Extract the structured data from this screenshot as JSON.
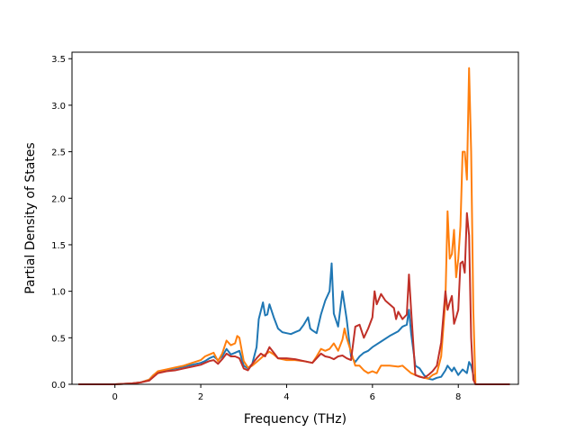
{
  "chart_data": {
    "type": "line",
    "title": "",
    "xlabel": "Frequency (THz)",
    "ylabel": "Partial Density of States",
    "xlim": [
      -1.0,
      9.4
    ],
    "ylim": [
      0.0,
      3.57
    ],
    "xticks": [
      0,
      2,
      4,
      6,
      8
    ],
    "yticks": [
      0.0,
      0.5,
      1.0,
      1.5,
      2.0,
      2.5,
      3.0,
      3.5
    ],
    "ytick_labels": [
      "0.0",
      "0.5",
      "1.0",
      "1.5",
      "2.0",
      "2.5",
      "3.0",
      "3.5"
    ],
    "grid": false,
    "series": [
      {
        "color": "#1f77b4",
        "points": [
          [
            -0.85,
            0
          ],
          [
            -0.4,
            0
          ],
          [
            0,
            0
          ],
          [
            0.4,
            0.01
          ],
          [
            0.6,
            0.02
          ],
          [
            0.8,
            0.05
          ],
          [
            0.9,
            0.1
          ],
          [
            1.0,
            0.13
          ],
          [
            1.2,
            0.15
          ],
          [
            1.4,
            0.17
          ],
          [
            1.6,
            0.19
          ],
          [
            1.8,
            0.21
          ],
          [
            2.0,
            0.23
          ],
          [
            2.1,
            0.25
          ],
          [
            2.2,
            0.28
          ],
          [
            2.3,
            0.3
          ],
          [
            2.4,
            0.26
          ],
          [
            2.5,
            0.3
          ],
          [
            2.6,
            0.38
          ],
          [
            2.7,
            0.32
          ],
          [
            2.8,
            0.34
          ],
          [
            2.9,
            0.36
          ],
          [
            3.0,
            0.2
          ],
          [
            3.1,
            0.17
          ],
          [
            3.2,
            0.22
          ],
          [
            3.3,
            0.4
          ],
          [
            3.35,
            0.7
          ],
          [
            3.45,
            0.88
          ],
          [
            3.5,
            0.74
          ],
          [
            3.55,
            0.75
          ],
          [
            3.6,
            0.86
          ],
          [
            3.7,
            0.72
          ],
          [
            3.8,
            0.6
          ],
          [
            3.9,
            0.56
          ],
          [
            4.0,
            0.55
          ],
          [
            4.1,
            0.54
          ],
          [
            4.2,
            0.56
          ],
          [
            4.3,
            0.58
          ],
          [
            4.4,
            0.64
          ],
          [
            4.5,
            0.72
          ],
          [
            4.55,
            0.6
          ],
          [
            4.6,
            0.58
          ],
          [
            4.7,
            0.55
          ],
          [
            4.8,
            0.75
          ],
          [
            4.9,
            0.9
          ],
          [
            5.0,
            1.0
          ],
          [
            5.05,
            1.3
          ],
          [
            5.1,
            0.76
          ],
          [
            5.2,
            0.62
          ],
          [
            5.3,
            1.0
          ],
          [
            5.4,
            0.7
          ],
          [
            5.5,
            0.3
          ],
          [
            5.6,
            0.24
          ],
          [
            5.7,
            0.3
          ],
          [
            5.8,
            0.34
          ],
          [
            5.9,
            0.36
          ],
          [
            6.0,
            0.4
          ],
          [
            6.2,
            0.46
          ],
          [
            6.4,
            0.52
          ],
          [
            6.6,
            0.57
          ],
          [
            6.7,
            0.62
          ],
          [
            6.8,
            0.64
          ],
          [
            6.85,
            0.8
          ],
          [
            6.9,
            0.55
          ],
          [
            7.0,
            0.2
          ],
          [
            7.1,
            0.17
          ],
          [
            7.2,
            0.1
          ],
          [
            7.3,
            0.06
          ],
          [
            7.4,
            0.05
          ],
          [
            7.5,
            0.07
          ],
          [
            7.6,
            0.08
          ],
          [
            7.7,
            0.15
          ],
          [
            7.75,
            0.2
          ],
          [
            7.85,
            0.14
          ],
          [
            7.9,
            0.18
          ],
          [
            8.0,
            0.1
          ],
          [
            8.1,
            0.16
          ],
          [
            8.2,
            0.12
          ],
          [
            8.25,
            0.24
          ],
          [
            8.3,
            0.2
          ],
          [
            8.4,
            0
          ],
          [
            8.6,
            0
          ],
          [
            9.2,
            0
          ]
        ]
      },
      {
        "color": "#ff7f0e",
        "points": [
          [
            -0.85,
            0
          ],
          [
            -0.4,
            0
          ],
          [
            0,
            0
          ],
          [
            0.4,
            0.01
          ],
          [
            0.6,
            0.02
          ],
          [
            0.8,
            0.05
          ],
          [
            0.9,
            0.1
          ],
          [
            1.0,
            0.14
          ],
          [
            1.2,
            0.16
          ],
          [
            1.4,
            0.18
          ],
          [
            1.6,
            0.2
          ],
          [
            1.8,
            0.23
          ],
          [
            2.0,
            0.26
          ],
          [
            2.1,
            0.3
          ],
          [
            2.2,
            0.32
          ],
          [
            2.3,
            0.34
          ],
          [
            2.4,
            0.25
          ],
          [
            2.5,
            0.33
          ],
          [
            2.6,
            0.47
          ],
          [
            2.7,
            0.42
          ],
          [
            2.8,
            0.44
          ],
          [
            2.85,
            0.52
          ],
          [
            2.9,
            0.5
          ],
          [
            3.0,
            0.25
          ],
          [
            3.1,
            0.18
          ],
          [
            3.2,
            0.2
          ],
          [
            3.3,
            0.24
          ],
          [
            3.4,
            0.28
          ],
          [
            3.5,
            0.32
          ],
          [
            3.6,
            0.35
          ],
          [
            3.7,
            0.32
          ],
          [
            3.8,
            0.28
          ],
          [
            4.0,
            0.26
          ],
          [
            4.2,
            0.26
          ],
          [
            4.4,
            0.25
          ],
          [
            4.6,
            0.23
          ],
          [
            4.7,
            0.3
          ],
          [
            4.8,
            0.38
          ],
          [
            4.9,
            0.36
          ],
          [
            5.0,
            0.38
          ],
          [
            5.1,
            0.44
          ],
          [
            5.2,
            0.36
          ],
          [
            5.3,
            0.48
          ],
          [
            5.35,
            0.6
          ],
          [
            5.4,
            0.5
          ],
          [
            5.5,
            0.35
          ],
          [
            5.6,
            0.2
          ],
          [
            5.7,
            0.2
          ],
          [
            5.8,
            0.15
          ],
          [
            5.9,
            0.12
          ],
          [
            6.0,
            0.14
          ],
          [
            6.1,
            0.12
          ],
          [
            6.2,
            0.2
          ],
          [
            6.4,
            0.2
          ],
          [
            6.6,
            0.19
          ],
          [
            6.7,
            0.2
          ],
          [
            6.8,
            0.16
          ],
          [
            6.9,
            0.12
          ],
          [
            7.0,
            0.1
          ],
          [
            7.2,
            0.07
          ],
          [
            7.3,
            0.06
          ],
          [
            7.4,
            0.1
          ],
          [
            7.5,
            0.12
          ],
          [
            7.6,
            0.3
          ],
          [
            7.7,
            0.9
          ],
          [
            7.75,
            1.86
          ],
          [
            7.8,
            1.35
          ],
          [
            7.85,
            1.4
          ],
          [
            7.9,
            1.66
          ],
          [
            7.95,
            1.15
          ],
          [
            8.0,
            1.35
          ],
          [
            8.05,
            1.7
          ],
          [
            8.1,
            2.5
          ],
          [
            8.15,
            2.5
          ],
          [
            8.2,
            2.2
          ],
          [
            8.25,
            3.4
          ],
          [
            8.3,
            2.5
          ],
          [
            8.35,
            0.8
          ],
          [
            8.4,
            0
          ],
          [
            8.6,
            0
          ],
          [
            9.2,
            0
          ]
        ]
      },
      {
        "color": "#c03028",
        "points": [
          [
            -0.85,
            0
          ],
          [
            -0.4,
            0
          ],
          [
            0,
            0
          ],
          [
            0.4,
            0.01
          ],
          [
            0.6,
            0.02
          ],
          [
            0.8,
            0.04
          ],
          [
            0.9,
            0.08
          ],
          [
            1.0,
            0.12
          ],
          [
            1.2,
            0.14
          ],
          [
            1.4,
            0.15
          ],
          [
            1.6,
            0.17
          ],
          [
            1.8,
            0.19
          ],
          [
            2.0,
            0.21
          ],
          [
            2.1,
            0.23
          ],
          [
            2.2,
            0.25
          ],
          [
            2.3,
            0.26
          ],
          [
            2.4,
            0.22
          ],
          [
            2.5,
            0.27
          ],
          [
            2.6,
            0.33
          ],
          [
            2.7,
            0.3
          ],
          [
            2.8,
            0.3
          ],
          [
            2.9,
            0.28
          ],
          [
            3.0,
            0.17
          ],
          [
            3.1,
            0.15
          ],
          [
            3.2,
            0.22
          ],
          [
            3.3,
            0.28
          ],
          [
            3.4,
            0.33
          ],
          [
            3.5,
            0.3
          ],
          [
            3.6,
            0.4
          ],
          [
            3.7,
            0.34
          ],
          [
            3.8,
            0.28
          ],
          [
            4.0,
            0.28
          ],
          [
            4.2,
            0.27
          ],
          [
            4.4,
            0.25
          ],
          [
            4.6,
            0.23
          ],
          [
            4.7,
            0.28
          ],
          [
            4.8,
            0.33
          ],
          [
            4.9,
            0.3
          ],
          [
            5.0,
            0.29
          ],
          [
            5.1,
            0.27
          ],
          [
            5.2,
            0.3
          ],
          [
            5.3,
            0.31
          ],
          [
            5.4,
            0.28
          ],
          [
            5.5,
            0.26
          ],
          [
            5.6,
            0.62
          ],
          [
            5.7,
            0.64
          ],
          [
            5.8,
            0.5
          ],
          [
            5.9,
            0.6
          ],
          [
            6.0,
            0.72
          ],
          [
            6.05,
            1.0
          ],
          [
            6.1,
            0.86
          ],
          [
            6.2,
            0.97
          ],
          [
            6.3,
            0.9
          ],
          [
            6.4,
            0.86
          ],
          [
            6.5,
            0.82
          ],
          [
            6.55,
            0.7
          ],
          [
            6.6,
            0.78
          ],
          [
            6.7,
            0.7
          ],
          [
            6.8,
            0.75
          ],
          [
            6.85,
            1.18
          ],
          [
            6.9,
            0.8
          ],
          [
            7.0,
            0.1
          ],
          [
            7.1,
            0.08
          ],
          [
            7.2,
            0.07
          ],
          [
            7.3,
            0.1
          ],
          [
            7.4,
            0.14
          ],
          [
            7.5,
            0.2
          ],
          [
            7.6,
            0.45
          ],
          [
            7.7,
            1.0
          ],
          [
            7.75,
            0.8
          ],
          [
            7.8,
            0.88
          ],
          [
            7.85,
            0.95
          ],
          [
            7.9,
            0.65
          ],
          [
            7.95,
            0.72
          ],
          [
            8.0,
            0.8
          ],
          [
            8.05,
            1.3
          ],
          [
            8.1,
            1.32
          ],
          [
            8.15,
            1.2
          ],
          [
            8.2,
            1.84
          ],
          [
            8.25,
            1.6
          ],
          [
            8.3,
            0.5
          ],
          [
            8.35,
            0.05
          ],
          [
            8.4,
            0
          ],
          [
            8.6,
            0
          ],
          [
            9.2,
            0
          ]
        ]
      }
    ]
  }
}
